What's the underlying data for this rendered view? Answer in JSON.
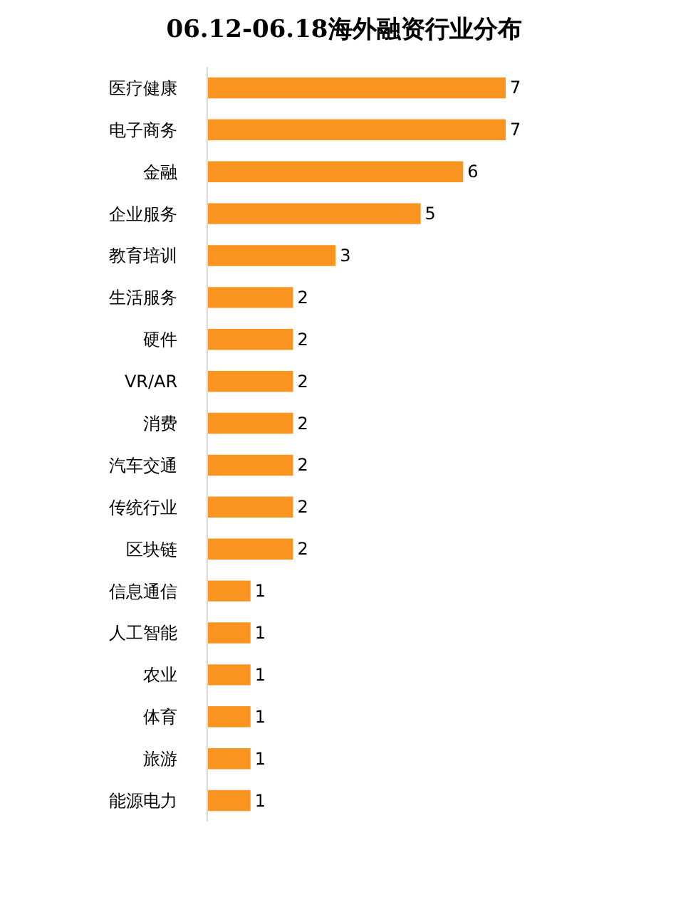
{
  "chart_data": {
    "type": "bar",
    "orientation": "horizontal",
    "title": "06.12-06.18海外融资行业分布",
    "categories": [
      "医疗健康",
      "电子商务",
      "金融",
      "企业服务",
      "教育培训",
      "生活服务",
      "硬件",
      "VR/AR",
      "消费",
      "汽车交通",
      "传统行业",
      "区块链",
      "信息通信",
      "人工智能",
      "农业",
      "体育",
      "旅游",
      "能源电力"
    ],
    "values": [
      7,
      7,
      6,
      5,
      3,
      2,
      2,
      2,
      2,
      2,
      2,
      2,
      1,
      1,
      1,
      1,
      1,
      1
    ],
    "color": "#fa9421",
    "data_labels": true,
    "tick_labels": "y"
  }
}
